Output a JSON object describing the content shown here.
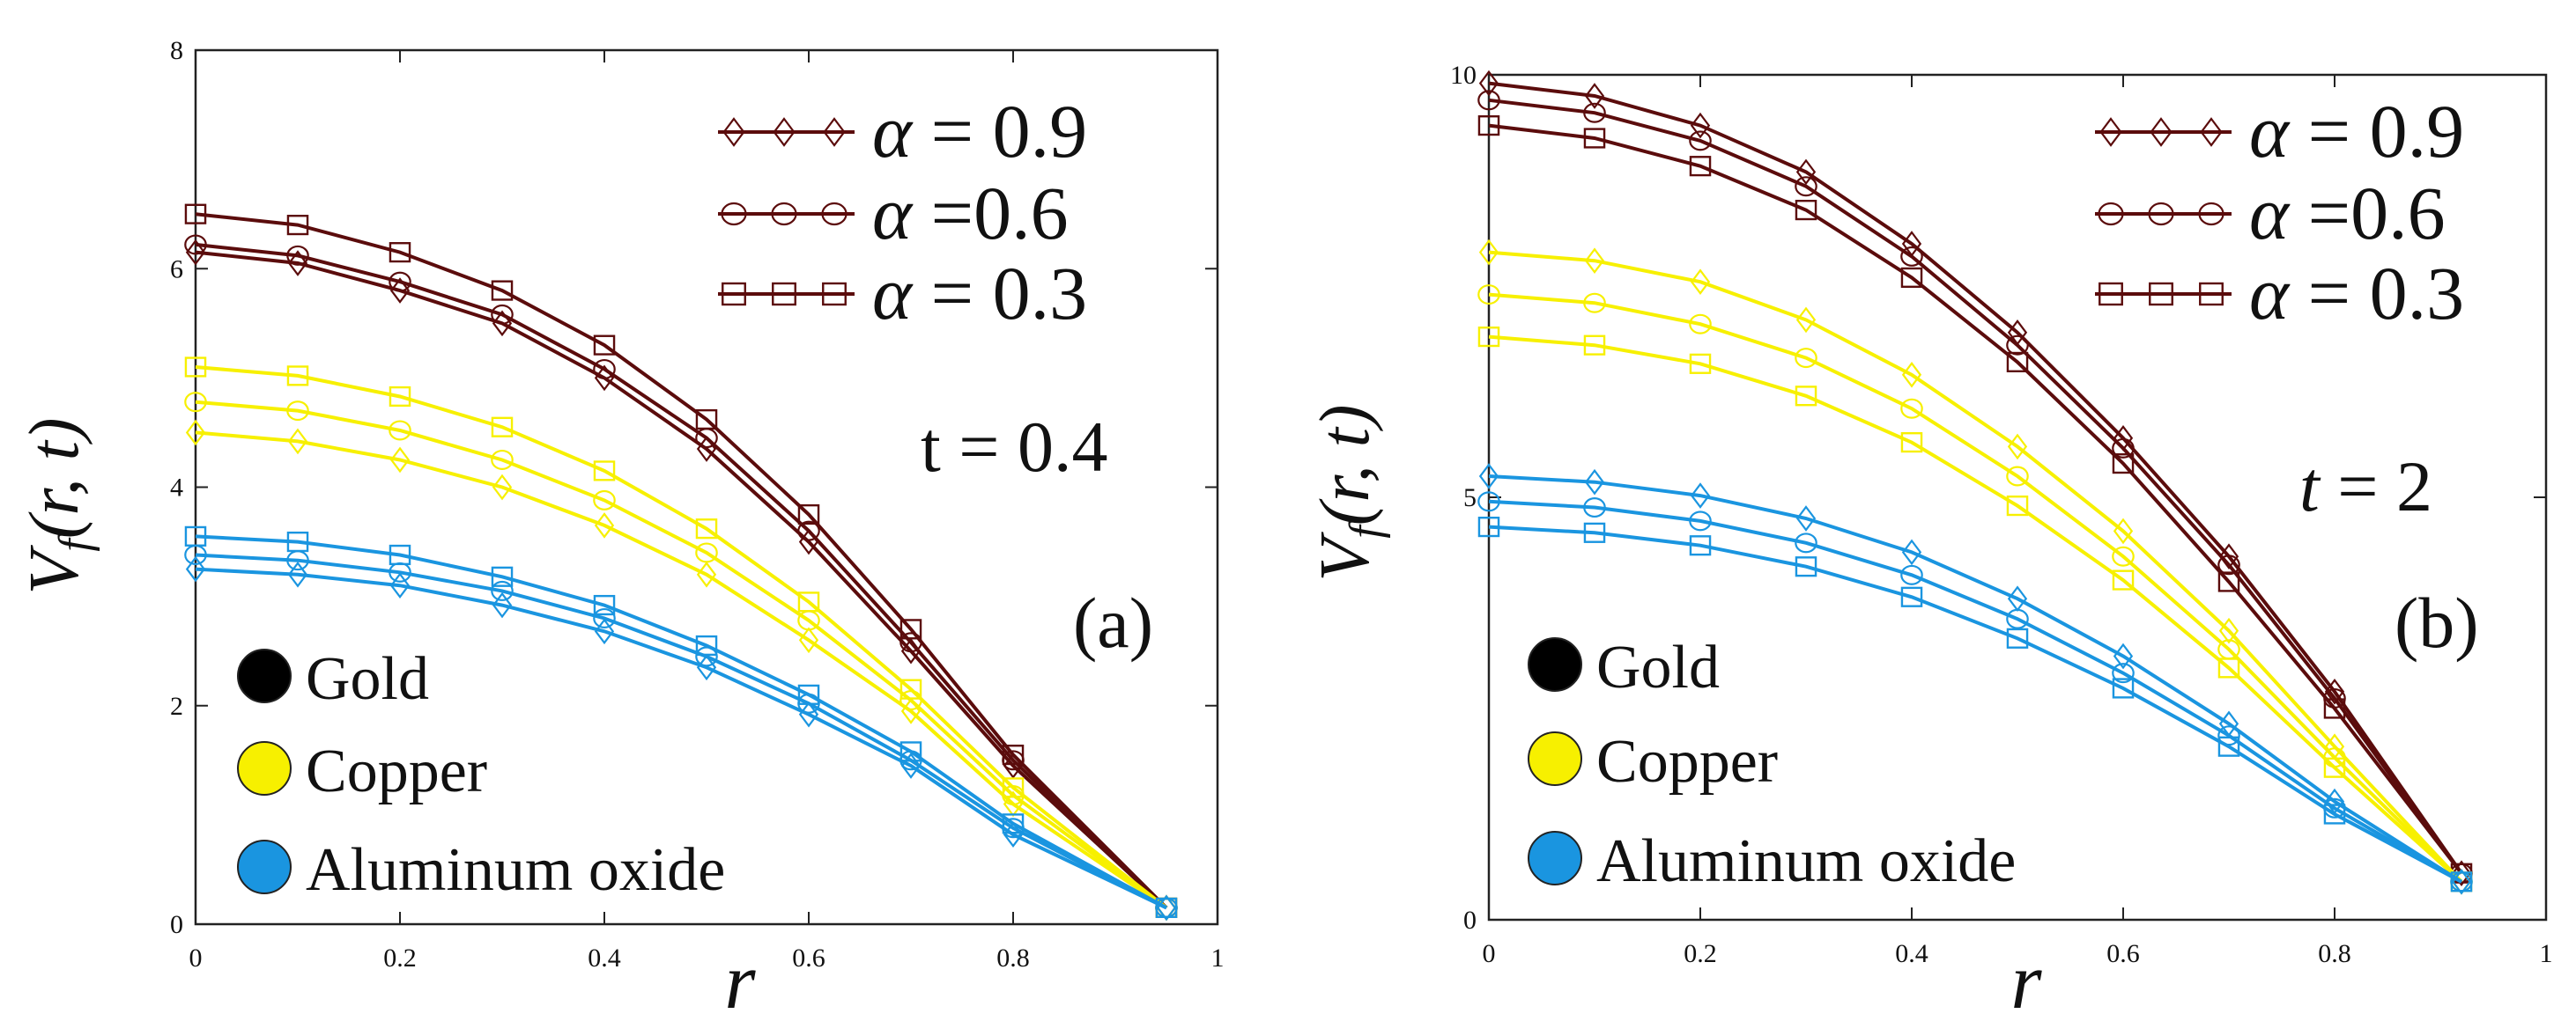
{
  "chart_data": [
    {
      "type": "line",
      "panel_label": "(a)",
      "annotation": "t = 0.4",
      "xlabel": "r",
      "ylabel_main": "V",
      "ylabel_sub": "f",
      "ylabel_args": "(r, t)",
      "xlim": [
        0,
        1
      ],
      "ylim": [
        0,
        8
      ],
      "xticks": [
        "0",
        "0.2",
        "0.4",
        "0.6",
        "0.8",
        "1"
      ],
      "yticks": [
        "0",
        "2",
        "4",
        "6",
        "8"
      ],
      "grid": false,
      "x": [
        0,
        0.1,
        0.2,
        0.3,
        0.4,
        0.5,
        0.6,
        0.7,
        0.8,
        0.95
      ],
      "series": [
        {
          "material": "Gold",
          "alpha": "0.9",
          "marker": "diamond",
          "values": [
            6.15,
            6.05,
            5.8,
            5.5,
            5.0,
            4.35,
            3.5,
            2.5,
            1.45,
            0.15
          ]
        },
        {
          "material": "Gold",
          "alpha": "0.6",
          "marker": "circle",
          "values": [
            6.22,
            6.12,
            5.88,
            5.58,
            5.08,
            4.45,
            3.6,
            2.58,
            1.5,
            0.15
          ]
        },
        {
          "material": "Gold",
          "alpha": "0.3",
          "marker": "square",
          "values": [
            6.5,
            6.4,
            6.15,
            5.8,
            5.3,
            4.62,
            3.75,
            2.7,
            1.55,
            0.15
          ]
        },
        {
          "material": "Copper",
          "alpha": "0.9",
          "marker": "diamond",
          "values": [
            4.5,
            4.42,
            4.25,
            4.0,
            3.65,
            3.2,
            2.6,
            1.95,
            1.1,
            0.15
          ]
        },
        {
          "material": "Copper",
          "alpha": "0.6",
          "marker": "circle",
          "values": [
            4.78,
            4.7,
            4.52,
            4.25,
            3.88,
            3.4,
            2.78,
            2.05,
            1.18,
            0.15
          ]
        },
        {
          "material": "Copper",
          "alpha": "0.3",
          "marker": "square",
          "values": [
            5.1,
            5.02,
            4.83,
            4.55,
            4.15,
            3.62,
            2.95,
            2.15,
            1.25,
            0.15
          ]
        },
        {
          "material": "Aluminum oxide",
          "alpha": "0.9",
          "marker": "diamond",
          "values": [
            3.25,
            3.2,
            3.1,
            2.92,
            2.68,
            2.35,
            1.92,
            1.45,
            0.82,
            0.15
          ]
        },
        {
          "material": "Aluminum oxide",
          "alpha": "0.6",
          "marker": "circle",
          "values": [
            3.38,
            3.33,
            3.22,
            3.05,
            2.8,
            2.45,
            2.02,
            1.5,
            0.88,
            0.15
          ]
        },
        {
          "material": "Aluminum oxide",
          "alpha": "0.3",
          "marker": "square",
          "values": [
            3.55,
            3.5,
            3.38,
            3.18,
            2.92,
            2.55,
            2.1,
            1.58,
            0.92,
            0.15
          ]
        }
      ]
    },
    {
      "type": "line",
      "panel_label": "(b)",
      "annotation_var": "t",
      "annotation_val": " = 2",
      "xlabel": "r",
      "ylabel_main": "V",
      "ylabel_sub": "f",
      "ylabel_args": "(r, t)",
      "xlim": [
        0,
        1
      ],
      "ylim": [
        0,
        10
      ],
      "xticks": [
        "0",
        "0.2",
        "0.4",
        "0.6",
        "0.8",
        "1"
      ],
      "yticks": [
        "0",
        "5",
        "10"
      ],
      "grid": false,
      "x": [
        0,
        0.1,
        0.2,
        0.3,
        0.4,
        0.5,
        0.6,
        0.7,
        0.8,
        0.92
      ],
      "series": [
        {
          "material": "Gold",
          "alpha": "0.9",
          "marker": "diamond",
          "values": [
            9.9,
            9.75,
            9.4,
            8.85,
            8.0,
            6.95,
            5.7,
            4.3,
            2.7,
            0.55
          ]
        },
        {
          "material": "Gold",
          "alpha": "0.6",
          "marker": "circle",
          "values": [
            9.7,
            9.55,
            9.22,
            8.68,
            7.85,
            6.8,
            5.58,
            4.2,
            2.62,
            0.55
          ]
        },
        {
          "material": "Gold",
          "alpha": "0.3",
          "marker": "square",
          "values": [
            9.4,
            9.25,
            8.92,
            8.4,
            7.6,
            6.6,
            5.4,
            4.0,
            2.5,
            0.55
          ]
        },
        {
          "material": "Copper",
          "alpha": "0.9",
          "marker": "diamond",
          "values": [
            7.9,
            7.8,
            7.55,
            7.1,
            6.45,
            5.6,
            4.6,
            3.42,
            2.05,
            0.45
          ]
        },
        {
          "material": "Copper",
          "alpha": "0.6",
          "marker": "circle",
          "values": [
            7.4,
            7.3,
            7.05,
            6.65,
            6.05,
            5.25,
            4.3,
            3.2,
            1.92,
            0.45
          ]
        },
        {
          "material": "Copper",
          "alpha": "0.3",
          "marker": "square",
          "values": [
            6.9,
            6.8,
            6.58,
            6.2,
            5.65,
            4.9,
            4.02,
            2.98,
            1.8,
            0.45
          ]
        },
        {
          "material": "Aluminum oxide",
          "alpha": "0.9",
          "marker": "diamond",
          "values": [
            5.25,
            5.18,
            5.02,
            4.75,
            4.35,
            3.8,
            3.12,
            2.32,
            1.4,
            0.45
          ]
        },
        {
          "material": "Aluminum oxide",
          "alpha": "0.6",
          "marker": "circle",
          "values": [
            4.95,
            4.88,
            4.72,
            4.46,
            4.08,
            3.56,
            2.92,
            2.18,
            1.32,
            0.45
          ]
        },
        {
          "material": "Aluminum oxide",
          "alpha": "0.3",
          "marker": "square",
          "values": [
            4.65,
            4.58,
            4.43,
            4.18,
            3.82,
            3.33,
            2.74,
            2.05,
            1.25,
            0.45
          ]
        }
      ]
    }
  ],
  "legend": {
    "alpha_symbol": "α",
    "alpha_entries": [
      {
        "marker": "diamond",
        "text": " = 0.9"
      },
      {
        "marker": "circle",
        "text": " =0.6"
      },
      {
        "marker": "square",
        "text": " = 0.3"
      }
    ],
    "materials": [
      {
        "name": "Gold",
        "color": "#000000"
      },
      {
        "name": "Copper",
        "color": "#f7f000"
      },
      {
        "name": "Aluminum oxide",
        "color": "#1a95e0"
      }
    ]
  },
  "colors": {
    "Gold": "#5b0c0c",
    "Copper": "#f7f000",
    "Aluminum oxide": "#1a95e0",
    "marker_gold": "#5b0c0c",
    "legend_line": "#5b0c0c"
  }
}
